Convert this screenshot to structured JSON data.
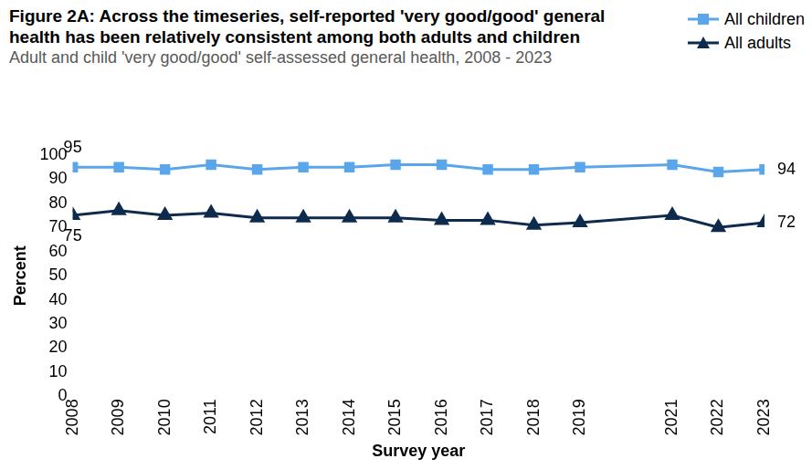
{
  "chart_data": {
    "type": "line",
    "title": "Figure 2A: Across the timeseries, self-reported 'very good/good' general health has been relatively consistent among both adults and children",
    "subtitle": "Adult and child 'very good/good' self-assessed general health, 2008 - 2023",
    "x_label": "Survey year",
    "y_label": "Percent",
    "x": [
      2008,
      2009,
      2010,
      2011,
      2012,
      2013,
      2014,
      2015,
      2016,
      2017,
      2018,
      2019,
      2021,
      2022,
      2023
    ],
    "xlim": [
      2008,
      2023
    ],
    "xticks": [
      2008,
      2009,
      2010,
      2011,
      2012,
      2013,
      2014,
      2015,
      2016,
      2017,
      2018,
      2019,
      2021,
      2022,
      2023
    ],
    "ylim": [
      0,
      100
    ],
    "yticks": [
      0,
      10,
      20,
      30,
      40,
      50,
      60,
      70,
      80,
      90,
      100
    ],
    "grid": false,
    "legend": "top right",
    "data_labels": true,
    "series": [
      {
        "name": "All children",
        "color": "#5aa6ea",
        "marker": "square",
        "line_style": "solid",
        "values": [
          95,
          95,
          94,
          96,
          94,
          95,
          95,
          96,
          96,
          94,
          94,
          95,
          96,
          93,
          94
        ],
        "value_labels": [
          "95",
          null,
          null,
          null,
          null,
          null,
          null,
          null,
          null,
          null,
          null,
          null,
          null,
          null,
          "94"
        ]
      },
      {
        "name": "All adults",
        "color": "#0d2b4c",
        "marker": "triangle",
        "line_style": "solid",
        "values": [
          75,
          77,
          75,
          76,
          74,
          74,
          74,
          74,
          73,
          73,
          71,
          72,
          75,
          70,
          72
        ],
        "value_labels": [
          "75",
          null,
          null,
          null,
          null,
          null,
          null,
          null,
          null,
          null,
          null,
          null,
          null,
          null,
          "72"
        ]
      }
    ]
  }
}
